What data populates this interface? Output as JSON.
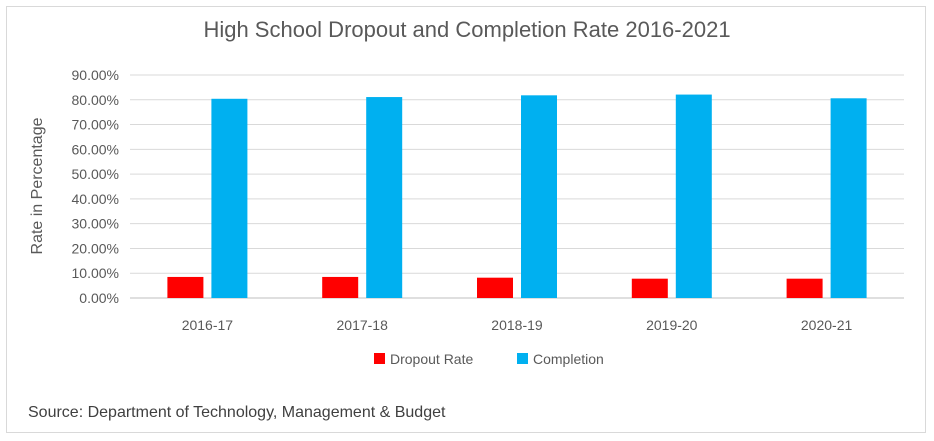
{
  "chart_data": {
    "type": "bar",
    "title": "High School Dropout and Completion Rate 2016-2021",
    "ylabel": "Rate in Percentage",
    "xlabel": "",
    "categories": [
      "2016-17",
      "2017-18",
      "2018-19",
      "2019-20",
      "2020-21"
    ],
    "series": [
      {
        "name": "Dropout Rate",
        "color": "#ff0000",
        "values": [
          8.5,
          8.5,
          8.2,
          7.8,
          7.8
        ]
      },
      {
        "name": "Completion",
        "color": "#00b0f0",
        "values": [
          80.4,
          81.1,
          81.8,
          82.1,
          80.6
        ]
      }
    ],
    "ylim": [
      0,
      90
    ],
    "yticks": [
      "0.00%",
      "10.00%",
      "20.00%",
      "30.00%",
      "40.00%",
      "50.00%",
      "60.00%",
      "70.00%",
      "80.00%",
      "90.00%"
    ],
    "grid": true,
    "legend": "bottom-center"
  },
  "source": "Source: Department of Technology, Management & Budget"
}
